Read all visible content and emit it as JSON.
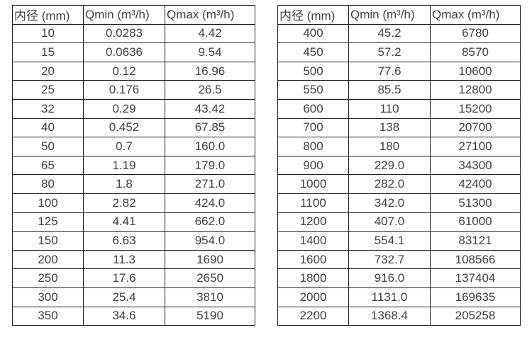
{
  "page": {
    "background": "#ffffff",
    "text_color": "#404040",
    "border_color": "#1f1f1f"
  },
  "tables": [
    {
      "name": "flow-table-small-diameters",
      "headers": [
        "内径 (mm)",
        "Qmin (m³/h)",
        "Qmax (m³/h)"
      ],
      "rows": [
        [
          "10",
          "0.0283",
          "4.42"
        ],
        [
          "15",
          "0.0636",
          "9.54"
        ],
        [
          "20",
          "0.12",
          "16.96"
        ],
        [
          "25",
          "0.176",
          "26.5"
        ],
        [
          "32",
          "0.29",
          "43.42"
        ],
        [
          "40",
          "0.452",
          "67.85"
        ],
        [
          "50",
          "0.7",
          "160.0"
        ],
        [
          "65",
          "1.19",
          "179.0"
        ],
        [
          "80",
          "1.8",
          "271.0"
        ],
        [
          "100",
          "2.82",
          "424.0"
        ],
        [
          "125",
          "4.41",
          "662.0"
        ],
        [
          "150",
          "6.63",
          "954.0"
        ],
        [
          "200",
          "11.3",
          "1690"
        ],
        [
          "250",
          "17.6",
          "2650"
        ],
        [
          "300",
          "25.4",
          "3810"
        ],
        [
          "350",
          "34.6",
          "5190"
        ]
      ]
    },
    {
      "name": "flow-table-large-diameters",
      "headers": [
        "内径 (mm)",
        "Qmin (m³/h)",
        "Qmax (m³/h)"
      ],
      "rows": [
        [
          "400",
          "45.2",
          "6780"
        ],
        [
          "450",
          "57.2",
          "8570"
        ],
        [
          "500",
          "77.6",
          "10600"
        ],
        [
          "550",
          "85.5",
          "12800"
        ],
        [
          "600",
          "110",
          "15200"
        ],
        [
          "700",
          "138",
          "20700"
        ],
        [
          "800",
          "180",
          "27100"
        ],
        [
          "900",
          "229.0",
          "34300"
        ],
        [
          "1000",
          "282.0",
          "42400"
        ],
        [
          "1100",
          "342.0",
          "51300"
        ],
        [
          "1200",
          "407.0",
          "61000"
        ],
        [
          "1400",
          "554.1",
          "83121"
        ],
        [
          "1600",
          "732.7",
          "108566"
        ],
        [
          "1800",
          "916.0",
          "137404"
        ],
        [
          "2000",
          "1131.0",
          "169635"
        ],
        [
          "2200",
          "1368.4",
          "205258"
        ]
      ]
    }
  ]
}
